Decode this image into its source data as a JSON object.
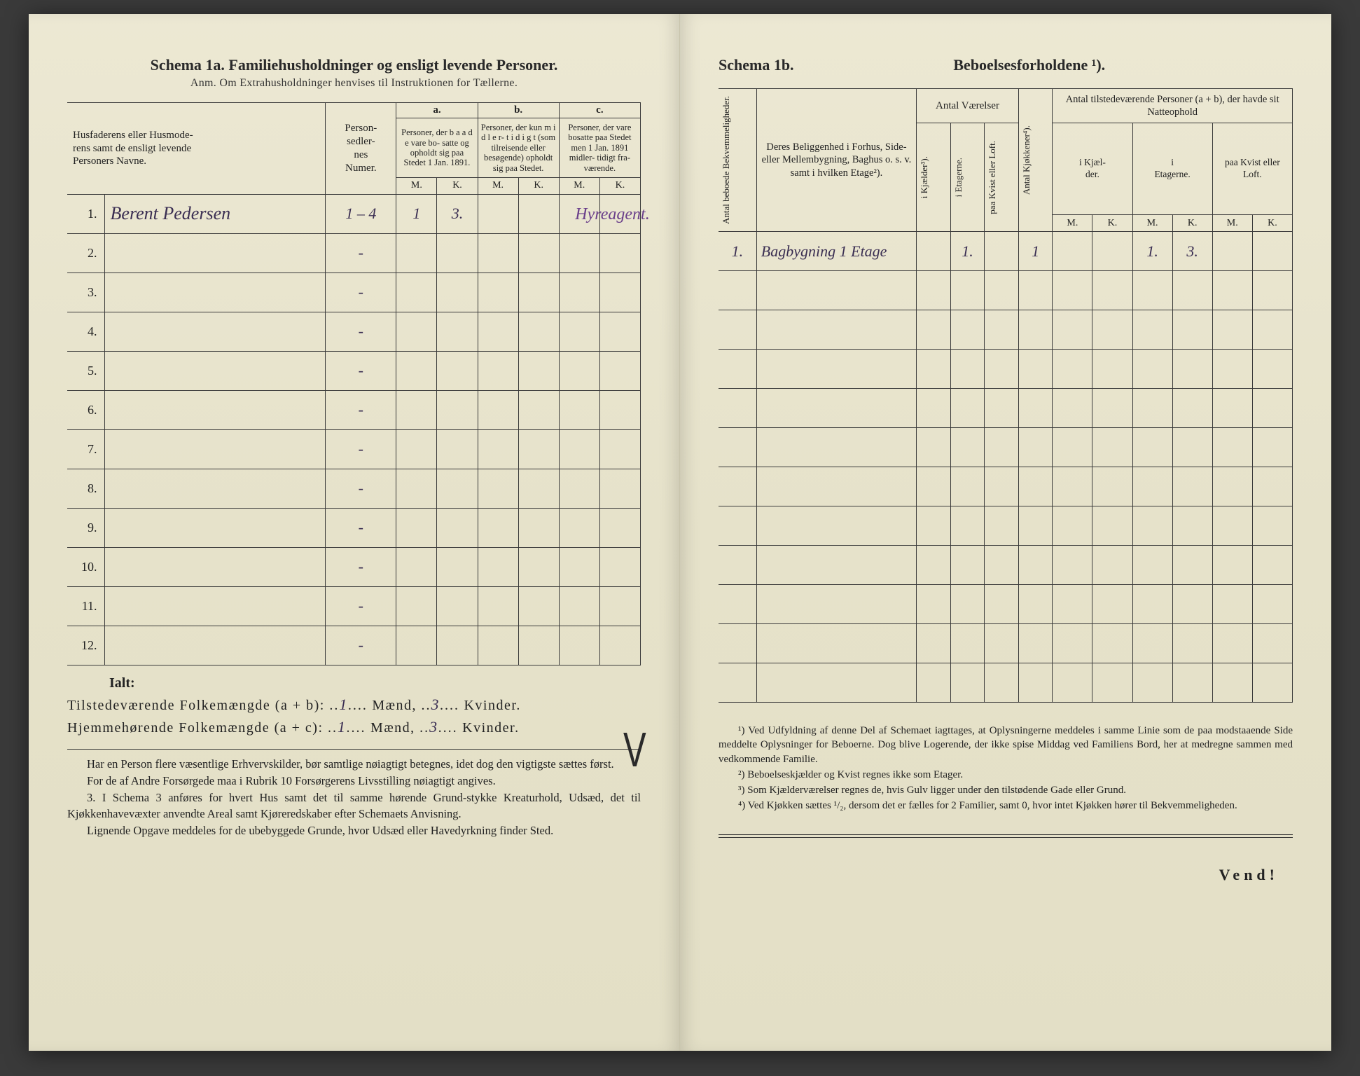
{
  "left": {
    "schema_title": "Schema 1a.  Familiehusholdninger og ensligt levende Personer.",
    "anm": "Anm. Om Extrahusholdninger henvises til Instruktionen for Tællerne.",
    "col_names": "Husfaderens eller Husmode-\nrens samt de ensligt levende\nPersoners Navne.",
    "col_person": "Person-\nsedler-\nnes\nNumer.",
    "group_a": "a.",
    "group_b": "b.",
    "group_c": "c.",
    "col_a_text": "Personer, der b a a d e vare bo-\nsatte og opholdt sig paa Stedet 1 Jan. 1891.",
    "col_b_text": "Personer, der kun m i d l e r-\nt i d i g t (som tilreisende eller besøgende) opholdt sig paa Stedet.",
    "col_c_text": "Personer, der vare bosatte paa Stedet men 1 Jan. 1891 midler-\ntidigt fra-\nværende.",
    "m": "M.",
    "k": "K.",
    "rows": [
      {
        "n": "1.",
        "name": "Berent Pedersen",
        "person": "1 – 4",
        "aM": "1",
        "aK": "3.",
        "bM": "",
        "bK": "",
        "cM": "",
        "cK": "",
        "note": "Hyreagent."
      },
      {
        "n": "2.",
        "name": "",
        "person": "-",
        "aM": "",
        "aK": "",
        "bM": "",
        "bK": "",
        "cM": "",
        "cK": ""
      },
      {
        "n": "3.",
        "name": "",
        "person": "-",
        "aM": "",
        "aK": "",
        "bM": "",
        "bK": "",
        "cM": "",
        "cK": ""
      },
      {
        "n": "4.",
        "name": "",
        "person": "-",
        "aM": "",
        "aK": "",
        "bM": "",
        "bK": "",
        "cM": "",
        "cK": ""
      },
      {
        "n": "5.",
        "name": "",
        "person": "-",
        "aM": "",
        "aK": "",
        "bM": "",
        "bK": "",
        "cM": "",
        "cK": ""
      },
      {
        "n": "6.",
        "name": "",
        "person": "-",
        "aM": "",
        "aK": "",
        "bM": "",
        "bK": "",
        "cM": "",
        "cK": ""
      },
      {
        "n": "7.",
        "name": "",
        "person": "-",
        "aM": "",
        "aK": "",
        "bM": "",
        "bK": "",
        "cM": "",
        "cK": ""
      },
      {
        "n": "8.",
        "name": "",
        "person": "-",
        "aM": "",
        "aK": "",
        "bM": "",
        "bK": "",
        "cM": "",
        "cK": ""
      },
      {
        "n": "9.",
        "name": "",
        "person": "-",
        "aM": "",
        "aK": "",
        "bM": "",
        "bK": "",
        "cM": "",
        "cK": ""
      },
      {
        "n": "10.",
        "name": "",
        "person": "-",
        "aM": "",
        "aK": "",
        "bM": "",
        "bK": "",
        "cM": "",
        "cK": ""
      },
      {
        "n": "11.",
        "name": "",
        "person": "-",
        "aM": "",
        "aK": "",
        "bM": "",
        "bK": "",
        "cM": "",
        "cK": ""
      },
      {
        "n": "12.",
        "name": "",
        "person": "-",
        "aM": "",
        "aK": "",
        "bM": "",
        "bK": "",
        "cM": "",
        "cK": ""
      }
    ],
    "ialt": "Ialt:",
    "tot1_label": "Tilstedeværende Folkemængde (a + b): ",
    "tot1_m": "1",
    "tot_maend": " Mænd, ",
    "tot1_k": "3",
    "tot_kvinder": " Kvinder.",
    "tot2_label": "Hjemmehørende Folkemængde (a + c): ",
    "tot2_m": "1",
    "tot2_k": "3",
    "para1": "Har en Person flere væsentlige Erhvervskilder, bør samtlige nøiagtigt betegnes, idet dog den vigtigste sættes først.",
    "para2": "For de af Andre Forsørgede maa i Rubrik 10 Forsørgerens Livsstilling nøiagtigt angives.",
    "para3_num": "3.",
    "para3": "I Schema 3 anføres for hvert Hus samt det til samme hørende Grund-stykke Kreaturhold, Udsæd, det til Kjøkkenhavevæxter anvendte Areal samt Kjøreredskaber efter Schemaets Anvisning.",
    "para4": "Lignende Opgave meddeles for de ubebyggede Grunde, hvor Udsæd eller Havedyrkning finder Sted."
  },
  "right": {
    "schema": "Schema 1b.",
    "title": "Beboelsesforholdene ¹).",
    "col_bekv": "Antal beboede Bekvemmeligheder.",
    "col_belig": "Deres Beliggenhed i Forhus, Side- eller Mellembygning, Baghus o. s. v. samt i hvilken Etage²).",
    "grp_vaerelser": "Antal Værelser",
    "col_kjaelder": "i Kjælder³).",
    "col_etagerne": "i Etagerne.",
    "col_kvist": "paa Kvist eller Loft.",
    "col_kjokken": "Antal Kjøkkener⁴).",
    "grp_tilstede": "Antal tilstedeværende Personer (a + b), der havde sit Natteophold",
    "sub_kjaelder": "i Kjæl-\nder.",
    "sub_etagerne": "i\nEtagerne.",
    "sub_kvist": "paa Kvist eller Loft.",
    "m": "M.",
    "k": "K.",
    "rows": [
      {
        "bekv": "1.",
        "belig": "Bagbygning 1 Etage",
        "kj": "",
        "et": "1.",
        "kv": "",
        "kk": "1",
        "kdM": "",
        "kdK": "",
        "etM": "1.",
        "etK": "3.",
        "kvM": "",
        "kvK": ""
      },
      {
        "bekv": "",
        "belig": "",
        "kj": "",
        "et": "",
        "kv": "",
        "kk": "",
        "kdM": "",
        "kdK": "",
        "etM": "",
        "etK": "",
        "kvM": "",
        "kvK": ""
      },
      {
        "bekv": "",
        "belig": "",
        "kj": "",
        "et": "",
        "kv": "",
        "kk": "",
        "kdM": "",
        "kdK": "",
        "etM": "",
        "etK": "",
        "kvM": "",
        "kvK": ""
      },
      {
        "bekv": "",
        "belig": "",
        "kj": "",
        "et": "",
        "kv": "",
        "kk": "",
        "kdM": "",
        "kdK": "",
        "etM": "",
        "etK": "",
        "kvM": "",
        "kvK": ""
      },
      {
        "bekv": "",
        "belig": "",
        "kj": "",
        "et": "",
        "kv": "",
        "kk": "",
        "kdM": "",
        "kdK": "",
        "etM": "",
        "etK": "",
        "kvM": "",
        "kvK": ""
      },
      {
        "bekv": "",
        "belig": "",
        "kj": "",
        "et": "",
        "kv": "",
        "kk": "",
        "kdM": "",
        "kdK": "",
        "etM": "",
        "etK": "",
        "kvM": "",
        "kvK": ""
      },
      {
        "bekv": "",
        "belig": "",
        "kj": "",
        "et": "",
        "kv": "",
        "kk": "",
        "kdM": "",
        "kdK": "",
        "etM": "",
        "etK": "",
        "kvM": "",
        "kvK": ""
      },
      {
        "bekv": "",
        "belig": "",
        "kj": "",
        "et": "",
        "kv": "",
        "kk": "",
        "kdM": "",
        "kdK": "",
        "etM": "",
        "etK": "",
        "kvM": "",
        "kvK": ""
      },
      {
        "bekv": "",
        "belig": "",
        "kj": "",
        "et": "",
        "kv": "",
        "kk": "",
        "kdM": "",
        "kdK": "",
        "etM": "",
        "etK": "",
        "kvM": "",
        "kvK": ""
      },
      {
        "bekv": "",
        "belig": "",
        "kj": "",
        "et": "",
        "kv": "",
        "kk": "",
        "kdM": "",
        "kdK": "",
        "etM": "",
        "etK": "",
        "kvM": "",
        "kvK": ""
      },
      {
        "bekv": "",
        "belig": "",
        "kj": "",
        "et": "",
        "kv": "",
        "kk": "",
        "kdM": "",
        "kdK": "",
        "etM": "",
        "etK": "",
        "kvM": "",
        "kvK": ""
      },
      {
        "bekv": "",
        "belig": "",
        "kj": "",
        "et": "",
        "kv": "",
        "kk": "",
        "kdM": "",
        "kdK": "",
        "etM": "",
        "etK": "",
        "kvM": "",
        "kvK": ""
      }
    ],
    "fn1": "¹) Ved Udfyldning af denne Del af Schemaet iagttages, at Oplysningerne meddeles i samme Linie som de paa modstaaende Side meddelte Oplysninger for Beboerne. Dog blive Logerende, der ikke spise Middag ved Familiens Bord, her at medregne sammen med vedkommende Familie.",
    "fn2": "²) Beboelseskjælder og Kvist regnes ikke som Etager.",
    "fn3": "³) Som Kjælderværelser regnes de, hvis Gulv ligger under den tilstødende Gade eller Grund.",
    "fn4": "⁴) Ved Kjøkken sættes ¹/₂, dersom det er fælles for 2 Familier, samt 0, hvor intet Kjøkken hører til Bekvemmeligheden.",
    "vend": "Vend!"
  },
  "style": {
    "paper_bg": "#e8e4cf",
    "ink": "#2a2a2a",
    "handwriting_color": "#3a2e52",
    "purple": "#6a3e8a",
    "border": "#3a3a3a"
  }
}
